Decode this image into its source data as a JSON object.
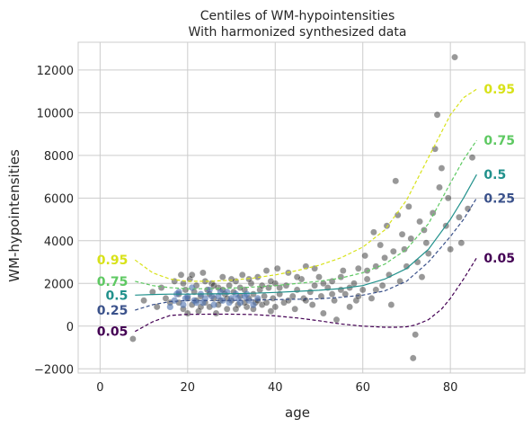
{
  "chart_data": {
    "type": "line",
    "title": "Centiles of WM-hypointensities",
    "subtitle": "With harmonized synthesized data",
    "xlabel": "age",
    "ylabel": "WM-hypointensities",
    "xlim": [
      -5,
      97
    ],
    "ylim": [
      -2200,
      13300
    ],
    "grid": true,
    "x_ticks": [
      0,
      20,
      40,
      60,
      80
    ],
    "y_ticks": [
      -2000,
      0,
      2000,
      4000,
      6000,
      8000,
      10000,
      12000
    ],
    "x_tick_labels": [
      "0",
      "20",
      "40",
      "60",
      "80"
    ],
    "y_tick_labels": [
      "−2000",
      "0",
      "2000",
      "4000",
      "6000",
      "8000",
      "10000",
      "12000"
    ],
    "centiles": [
      {
        "label": "0.05",
        "color": "#440154",
        "dashed": true,
        "x": [
          8,
          12,
          16,
          20,
          25,
          30,
          35,
          40,
          45,
          50,
          55,
          60,
          65,
          68,
          70,
          72,
          75,
          78,
          80,
          83,
          86
        ],
        "y": [
          -250,
          200,
          500,
          550,
          560,
          560,
          540,
          480,
          380,
          250,
          100,
          0,
          -50,
          -50,
          -30,
          50,
          300,
          800,
          1300,
          2200,
          3200
        ]
      },
      {
        "label": "0.25",
        "color": "#3b528b",
        "dashed": true,
        "x": [
          8,
          12,
          16,
          20,
          25,
          30,
          35,
          40,
          45,
          50,
          55,
          60,
          65,
          70,
          75,
          80,
          83,
          86
        ],
        "y": [
          750,
          1000,
          1150,
          1200,
          1200,
          1200,
          1220,
          1240,
          1260,
          1280,
          1350,
          1450,
          1650,
          2100,
          3000,
          4200,
          5000,
          6000
        ]
      },
      {
        "label": "0.5",
        "color": "#21918c",
        "dashed": false,
        "x": [
          8,
          12,
          16,
          20,
          25,
          30,
          35,
          40,
          45,
          50,
          55,
          60,
          65,
          70,
          75,
          80,
          83,
          86
        ],
        "y": [
          1450,
          1480,
          1500,
          1500,
          1510,
          1520,
          1540,
          1580,
          1630,
          1680,
          1760,
          1900,
          2200,
          2700,
          3600,
          5000,
          6000,
          7100
        ]
      },
      {
        "label": "0.75",
        "color": "#5ec962",
        "dashed": true,
        "x": [
          8,
          12,
          16,
          20,
          25,
          30,
          35,
          40,
          45,
          50,
          55,
          60,
          65,
          70,
          75,
          80,
          83,
          86
        ],
        "y": [
          2100,
          1900,
          1800,
          1750,
          1750,
          1780,
          1830,
          1900,
          2000,
          2100,
          2250,
          2500,
          2900,
          3600,
          4800,
          6700,
          7800,
          8700
        ]
      },
      {
        "label": "0.95",
        "color": "#d8e219",
        "dashed": true,
        "x": [
          8,
          12,
          16,
          20,
          25,
          30,
          35,
          40,
          45,
          50,
          55,
          60,
          65,
          70,
          75,
          80,
          83,
          86
        ],
        "y": [
          3100,
          2500,
          2200,
          2100,
          2100,
          2150,
          2250,
          2400,
          2600,
          2850,
          3200,
          3700,
          4500,
          5900,
          7900,
          9900,
          10700,
          11100
        ]
      }
    ],
    "scatter_points": [
      [
        7.5,
        -600
      ],
      [
        10,
        1200
      ],
      [
        12,
        1600
      ],
      [
        13,
        900
      ],
      [
        14,
        1800
      ],
      [
        15,
        1300
      ],
      [
        16,
        1100
      ],
      [
        17,
        2100
      ],
      [
        18,
        1500
      ],
      [
        18.5,
        2400
      ],
      [
        19,
        800
      ],
      [
        19.5,
        1700
      ],
      [
        20,
        1300
      ],
      [
        20.5,
        2200
      ],
      [
        21,
        1000
      ],
      [
        21.5,
        1600
      ],
      [
        22,
        1900
      ],
      [
        22.5,
        700
      ],
      [
        23,
        1400
      ],
      [
        23.5,
        2500
      ],
      [
        24,
        1100
      ],
      [
        24.5,
        1700
      ],
      [
        25,
        900
      ],
      [
        25.5,
        2000
      ],
      [
        26,
        1300
      ],
      [
        26.5,
        600
      ],
      [
        27,
        1800
      ],
      [
        27.5,
        1200
      ],
      [
        28,
        2300
      ],
      [
        28.5,
        1500
      ],
      [
        29,
        800
      ],
      [
        29.5,
        1900
      ],
      [
        30,
        1200
      ],
      [
        30.5,
        1600
      ],
      [
        31,
        2100
      ],
      [
        31.5,
        1000
      ],
      [
        32,
        1400
      ],
      [
        32.5,
        2400
      ],
      [
        33,
        1700
      ],
      [
        33.5,
        900
      ],
      [
        34,
        1300
      ],
      [
        34.5,
        2000
      ],
      [
        35,
        1500
      ],
      [
        35.5,
        1100
      ],
      [
        36,
        2300
      ],
      [
        36.5,
        1700
      ],
      [
        37,
        1000
      ],
      [
        37.5,
        1400
      ],
      [
        38,
        2600
      ],
      [
        38.5,
        1800
      ],
      [
        39,
        700
      ],
      [
        39.5,
        1300
      ],
      [
        40,
        2000
      ],
      [
        40.5,
        2700
      ],
      [
        41,
        1500
      ],
      [
        42,
        1100
      ],
      [
        42.5,
        1900
      ],
      [
        43,
        2500
      ],
      [
        44,
        1400
      ],
      [
        44.5,
        800
      ],
      [
        45,
        1700
      ],
      [
        46,
        2200
      ],
      [
        46.5,
        1300
      ],
      [
        47,
        2800
      ],
      [
        48,
        1600
      ],
      [
        48.5,
        1000
      ],
      [
        49,
        1900
      ],
      [
        50,
        2300
      ],
      [
        50.5,
        1400
      ],
      [
        51,
        600
      ],
      [
        52,
        1800
      ],
      [
        53,
        2100
      ],
      [
        53.5,
        1200
      ],
      [
        54,
        300
      ],
      [
        55,
        1700
      ],
      [
        55.5,
        2600
      ],
      [
        56,
        1500
      ],
      [
        57,
        900
      ],
      [
        58,
        2000
      ],
      [
        58.5,
        1200
      ],
      [
        59,
        2700
      ],
      [
        60,
        1700
      ],
      [
        60.5,
        3300
      ],
      [
        61,
        2200
      ],
      [
        62,
        1300
      ],
      [
        62.5,
        4400
      ],
      [
        63,
        2800
      ],
      [
        64,
        3800
      ],
      [
        64.5,
        1900
      ],
      [
        65,
        3200
      ],
      [
        65.5,
        4700
      ],
      [
        66,
        2400
      ],
      [
        66.5,
        1000
      ],
      [
        67,
        3500
      ],
      [
        67.5,
        6800
      ],
      [
        68,
        5200
      ],
      [
        68.5,
        2100
      ],
      [
        69,
        4300
      ],
      [
        69.5,
        3600
      ],
      [
        70,
        2800
      ],
      [
        70.5,
        5600
      ],
      [
        71,
        4100
      ],
      [
        71.5,
        -1500
      ],
      [
        72,
        -400
      ],
      [
        72.5,
        3000
      ],
      [
        73,
        4900
      ],
      [
        73.5,
        2300
      ],
      [
        74,
        4500
      ],
      [
        74.5,
        3900
      ],
      [
        75,
        3400
      ],
      [
        76,
        5300
      ],
      [
        76.5,
        8300
      ],
      [
        77,
        9900
      ],
      [
        77.5,
        6500
      ],
      [
        78,
        7400
      ],
      [
        79,
        4700
      ],
      [
        79.5,
        6000
      ],
      [
        80,
        3600
      ],
      [
        81,
        12600
      ],
      [
        82,
        5100
      ],
      [
        82.5,
        3900
      ],
      [
        84,
        5500
      ],
      [
        85,
        7900
      ],
      [
        18,
        1100
      ],
      [
        19,
        2000
      ],
      [
        20,
        600
      ],
      [
        21,
        2400
      ],
      [
        22,
        1200
      ],
      [
        23,
        900
      ],
      [
        24,
        2100
      ],
      [
        25,
        1500
      ],
      [
        26,
        1900
      ],
      [
        27,
        1000
      ],
      [
        28,
        1700
      ],
      [
        29,
        1300
      ],
      [
        30,
        2200
      ],
      [
        31,
        800
      ],
      [
        32,
        1800
      ],
      [
        33,
        1100
      ],
      [
        34,
        2200
      ],
      [
        35,
        800
      ],
      [
        36,
        1200
      ],
      [
        37,
        1900
      ],
      [
        38,
        1100
      ],
      [
        39,
        2100
      ],
      [
        40,
        900
      ],
      [
        41,
        1800
      ],
      [
        43,
        1200
      ],
      [
        45,
        2300
      ],
      [
        47,
        1200
      ],
      [
        49,
        2700
      ],
      [
        51,
        2000
      ],
      [
        53,
        1500
      ],
      [
        55,
        2300
      ],
      [
        57,
        1800
      ],
      [
        59,
        1400
      ],
      [
        61,
        2600
      ],
      [
        63,
        1700
      ]
    ],
    "synth_points": [
      [
        16,
        900
      ],
      [
        17,
        1200
      ],
      [
        18,
        1600
      ],
      [
        19,
        1000
      ],
      [
        20,
        1400
      ],
      [
        21,
        1800
      ],
      [
        22,
        1100
      ],
      [
        23,
        1500
      ],
      [
        24,
        1300
      ],
      [
        25,
        1700
      ],
      [
        26,
        1000
      ],
      [
        27,
        1400
      ],
      [
        28,
        1200
      ],
      [
        29,
        1600
      ],
      [
        30,
        1300
      ],
      [
        31,
        1500
      ],
      [
        32,
        1100
      ],
      [
        33,
        1400
      ],
      [
        34,
        1200
      ],
      [
        35,
        1000
      ],
      [
        36,
        1300
      ],
      [
        17.5,
        1500
      ],
      [
        19.5,
        1300
      ],
      [
        21.5,
        1200
      ],
      [
        23.5,
        1100
      ],
      [
        25.5,
        1400
      ],
      [
        27.5,
        1600
      ],
      [
        29.5,
        1100
      ],
      [
        31.5,
        1300
      ],
      [
        33.5,
        1500
      ]
    ]
  }
}
